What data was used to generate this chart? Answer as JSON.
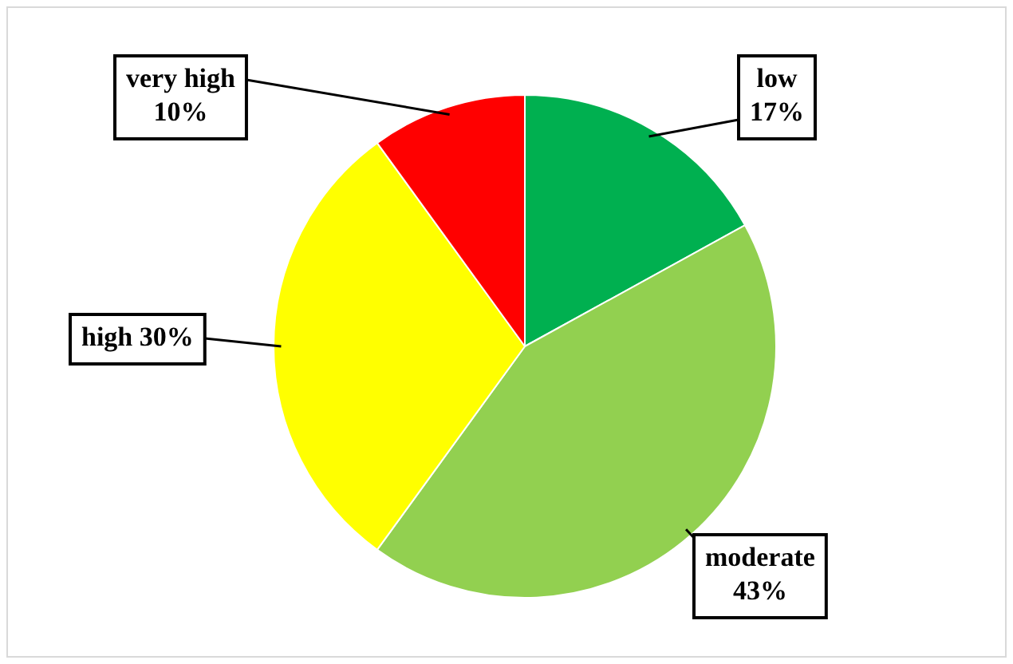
{
  "chart_data": {
    "type": "pie",
    "categories": [
      "low",
      "moderate",
      "high",
      "very high"
    ],
    "values": [
      17,
      43,
      30,
      10
    ],
    "value_labels": [
      "17%",
      "43%",
      "30%",
      "10%"
    ],
    "colors": [
      "#00b050",
      "#92d050",
      "#ffff00",
      "#ff0000"
    ],
    "legend": false
  }
}
